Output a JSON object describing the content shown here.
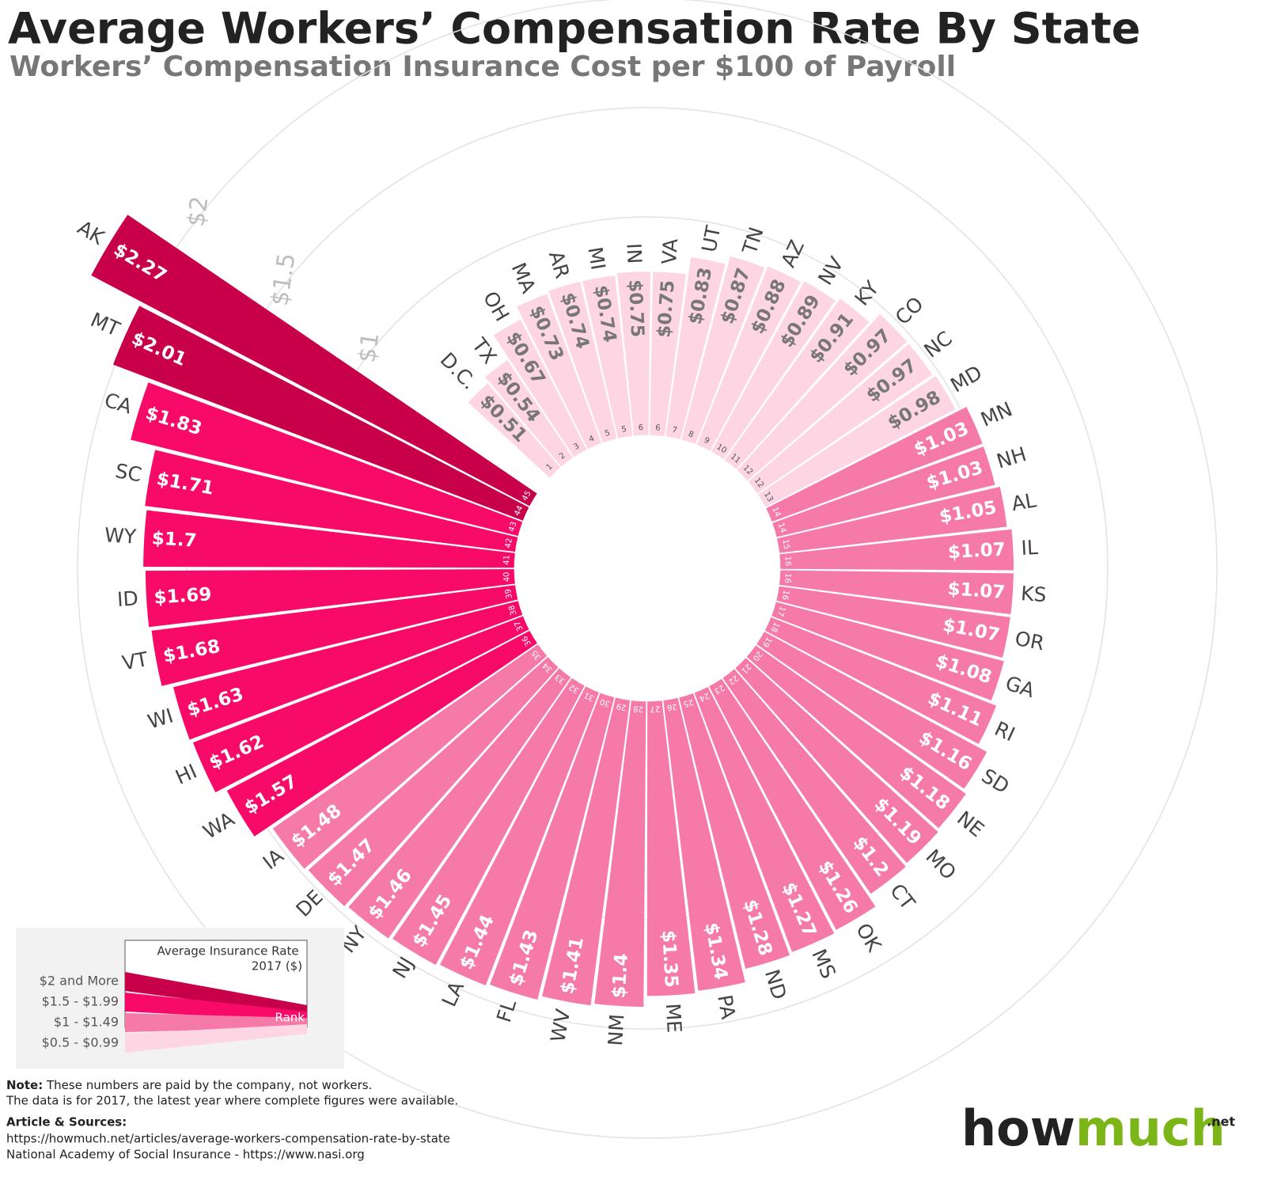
{
  "chart_data": {
    "type": "radial-bar",
    "title": "Average Workers’ Compensation Rate By State",
    "subtitle": "Workers’ Compensation Insurance Cost per $100 of Payroll",
    "categories": [
      "D.C.",
      "TX",
      "OH",
      "MA",
      "AR",
      "MI",
      "IN",
      "VA",
      "UT",
      "TN",
      "AZ",
      "NV",
      "KY",
      "CO",
      "NC",
      "MD",
      "MN",
      "NH",
      "AL",
      "IL",
      "KS",
      "OR",
      "GA",
      "RI",
      "SD",
      "NE",
      "MO",
      "CT",
      "OK",
      "MS",
      "ND",
      "PA",
      "ME",
      "NM",
      "WV",
      "FL",
      "LA",
      "NJ",
      "NY",
      "DE",
      "IA",
      "WA",
      "HI",
      "WI",
      "VT",
      "ID",
      "WY",
      "SC",
      "CA",
      "MT",
      "AK"
    ],
    "values": [
      0.51,
      0.54,
      0.67,
      0.73,
      0.74,
      0.74,
      0.75,
      0.75,
      0.83,
      0.87,
      0.88,
      0.89,
      0.91,
      0.97,
      0.97,
      0.98,
      1.03,
      1.03,
      1.05,
      1.07,
      1.07,
      1.07,
      1.08,
      1.11,
      1.16,
      1.18,
      1.19,
      1.2,
      1.26,
      1.27,
      1.28,
      1.34,
      1.35,
      1.4,
      1.41,
      1.43,
      1.44,
      1.45,
      1.46,
      1.47,
      1.48,
      1.57,
      1.62,
      1.63,
      1.68,
      1.69,
      1.7,
      1.71,
      1.83,
      2.01,
      2.27
    ],
    "value_labels": [
      "$0.51",
      "$0.54",
      "$0.67",
      "$0.73",
      "$0.74",
      "$0.74",
      "$0.75",
      "$0.75",
      "$0.83",
      "$0.87",
      "$0.88",
      "$0.89",
      "$0.91",
      "$0.97",
      "$0.97",
      "$0.98",
      "$1.03",
      "$1.03",
      "$1.05",
      "$1.07",
      "$1.07",
      "$1.07",
      "$1.08",
      "$1.11",
      "$1.16",
      "$1.18",
      "$1.19",
      "$1.2",
      "$1.26",
      "$1.27",
      "$1.28",
      "$1.34",
      "$1.35",
      "$1.4",
      "$1.41",
      "$1.43",
      "$1.44",
      "$1.45",
      "$1.46",
      "$1.47",
      "$1.48",
      "$1.57",
      "$1.62",
      "$1.63",
      "$1.68",
      "$1.69",
      "$1.7",
      "$1.71",
      "$1.83",
      "$2.01",
      "$2.27"
    ],
    "ranks": [
      1,
      2,
      3,
      4,
      5,
      5,
      6,
      6,
      7,
      8,
      9,
      10,
      11,
      12,
      12,
      13,
      14,
      14,
      15,
      16,
      16,
      16,
      17,
      18,
      19,
      20,
      21,
      22,
      23,
      24,
      25,
      26,
      27,
      28,
      29,
      30,
      31,
      32,
      33,
      34,
      35,
      36,
      37,
      38,
      39,
      40,
      41,
      42,
      43,
      44,
      45
    ],
    "colors": [
      "#fdd5e3",
      "#fdd5e3",
      "#fdd5e3",
      "#fdd5e3",
      "#fdd5e3",
      "#fdd5e3",
      "#fdd5e3",
      "#fdd5e3",
      "#fdd5e3",
      "#fdd5e3",
      "#fdd5e3",
      "#fdd5e3",
      "#fdd5e3",
      "#fdd5e3",
      "#fdd5e3",
      "#fdd5e3",
      "#f57aa8",
      "#f57aa8",
      "#f57aa8",
      "#f57aa8",
      "#f57aa8",
      "#f57aa8",
      "#f57aa8",
      "#f57aa8",
      "#f57aa8",
      "#f57aa8",
      "#f57aa8",
      "#f57aa8",
      "#f57aa8",
      "#f57aa8",
      "#f57aa8",
      "#f57aa8",
      "#f57aa8",
      "#f57aa8",
      "#f57aa8",
      "#f57aa8",
      "#f57aa8",
      "#f57aa8",
      "#f57aa8",
      "#f57aa8",
      "#f57aa8",
      "#f80a68",
      "#f80a68",
      "#f80a68",
      "#f80a68",
      "#f80a68",
      "#f80a68",
      "#f80a68",
      "#f80a68",
      "#c8004a",
      "#c8004a"
    ],
    "rticks": [
      {
        "value": 1,
        "label": "$1"
      },
      {
        "value": 1.5,
        "label": "$1.5"
      },
      {
        "value": 2,
        "label": "$2"
      }
    ],
    "grid": true,
    "legend": {
      "title_lines": [
        "Average Insurance Rate",
        "2017 ($)"
      ],
      "items": [
        {
          "label": "$2 and More",
          "color": "#c8004a"
        },
        {
          "label": "$1.5 - $1.99",
          "color": "#f80a68"
        },
        {
          "label": "$1 - $1.49",
          "color": "#f57aa8"
        },
        {
          "label": "$0.5 - $0.99",
          "color": "#fdd5e3"
        }
      ],
      "rank_label": "Rank"
    }
  },
  "footer": {
    "note_label": "Note:",
    "note_text": "These numbers are paid by the company, not workers.",
    "note_line2": "The data is for 2017, the latest year where complete figures were available.",
    "sources_label": "Article & Sources:",
    "sources": [
      "https://howmuch.net/articles/average-workers-compensation-rate-by-state",
      "National Academy of Social Insurance - https://www.nasi.org"
    ]
  },
  "logo": {
    "part1": "how",
    "part2": "much",
    "suffix": ".net"
  }
}
